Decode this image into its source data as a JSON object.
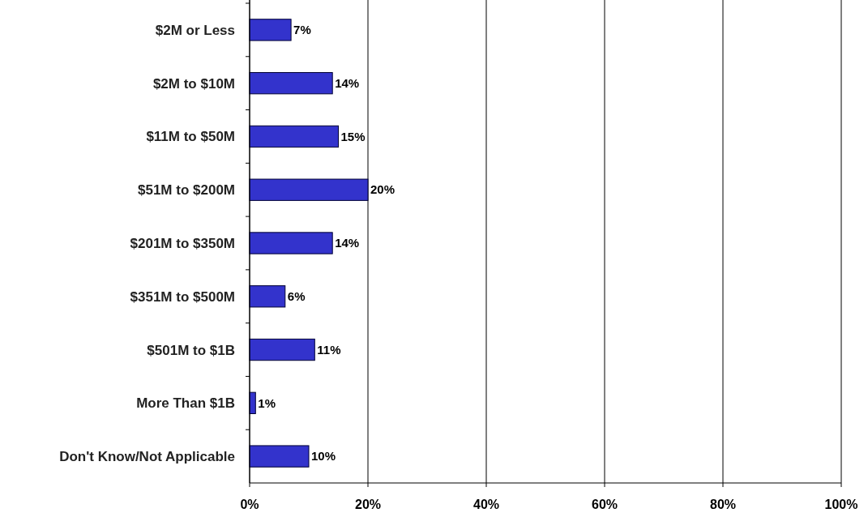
{
  "chart_data": {
    "type": "bar",
    "orientation": "horizontal",
    "categories": [
      "$2M or Less",
      "$2M to $10M",
      "$11M to $50M",
      "$51M to $200M",
      "$201M to $350M",
      "$351M to $500M",
      "$501M to $1B",
      "More Than $1B",
      "Don't Know/Not Applicable"
    ],
    "values": [
      7,
      14,
      15,
      20,
      14,
      6,
      11,
      1,
      10
    ],
    "value_labels": [
      "7%",
      "14%",
      "15%",
      "20%",
      "14%",
      "6%",
      "11%",
      "1%",
      "10%"
    ],
    "color": "#3333cc",
    "xlim": [
      0,
      100
    ],
    "xticks": [
      {
        "value": 0,
        "label": "0%"
      },
      {
        "value": 20,
        "label": "20%"
      },
      {
        "value": 40,
        "label": "40%"
      },
      {
        "value": 60,
        "label": "60%"
      },
      {
        "value": 80,
        "label": "80%"
      },
      {
        "value": 100,
        "label": "100%"
      }
    ],
    "grid": "x"
  }
}
